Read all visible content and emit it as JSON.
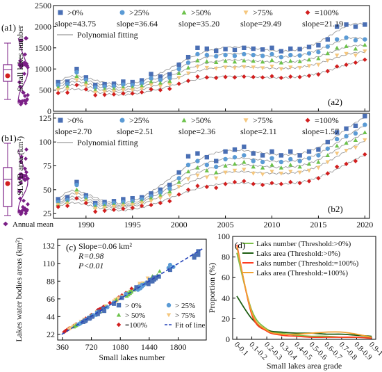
{
  "colors": {
    "gt0": "#4a6fb4",
    "gt25": "#5b9bd5",
    "gt50": "#6cc24a",
    "gt75": "#f5c77e",
    "eq100": "#d21f1f",
    "purple": "#7b1f86",
    "fit": "#9a9a9a",
    "darkgreen": "#1e5e12",
    "lightgreen": "#7cc04a",
    "red": "#ff3b1f",
    "orange": "#f0a030"
  },
  "panel_labels": {
    "a1": "(a1)",
    "b1": "(b1)",
    "a2": "(a2)",
    "b2": "(b2)",
    "c": "(c)",
    "d": "(d)"
  },
  "annual_mean_label": "Annual mean",
  "chart_data": [
    {
      "id": "a2",
      "type": "scatter",
      "ylabel": "Small lakes number",
      "ylim": [
        0,
        2500
      ],
      "yticks": [
        0,
        500,
        1000,
        1500,
        2000,
        2500
      ],
      "xlim": [
        1986.5,
        2020.5
      ],
      "fit_label": "Polynomial fitting",
      "legend": [
        {
          "key": "gt0",
          "label": ">0%",
          "slope": "slope=43.75",
          "marker": "square"
        },
        {
          "key": "gt25",
          "label": ">25%",
          "slope": "slope=36.64",
          "marker": "circle"
        },
        {
          "key": "gt50",
          "label": ">50%",
          "slope": "slope=35.20",
          "marker": "triangle"
        },
        {
          "key": "gt75",
          "label": ">75%",
          "slope": "slope=29.49",
          "marker": "tridown"
        },
        {
          "key": "eq100",
          "label": "=100%",
          "slope": "slope=21.19",
          "marker": "diamond"
        }
      ],
      "years": [
        1987,
        1988,
        1989,
        1990,
        1991,
        1992,
        1993,
        1994,
        1995,
        1996,
        1997,
        1998,
        1999,
        2000,
        2001,
        2002,
        2003,
        2004,
        2005,
        2006,
        2007,
        2008,
        2009,
        2010,
        2011,
        2012,
        2013,
        2014,
        2015,
        2016,
        2017,
        2018,
        2019,
        2020
      ],
      "series": [
        {
          "key": "gt0",
          "values": [
            690,
            700,
            1000,
            800,
            620,
            640,
            650,
            700,
            690,
            730,
            880,
            820,
            870,
            1100,
            1280,
            1500,
            1480,
            1430,
            1470,
            1450,
            1500,
            1480,
            1460,
            1500,
            1420,
            1480,
            1470,
            1520,
            1560,
            1700,
            2000,
            2050,
            2000,
            2050
          ]
        },
        {
          "key": "gt25",
          "values": [
            620,
            640,
            920,
            740,
            560,
            580,
            590,
            630,
            620,
            660,
            780,
            740,
            790,
            1000,
            1150,
            1350,
            1330,
            1300,
            1330,
            1310,
            1350,
            1330,
            1310,
            1350,
            1280,
            1330,
            1320,
            1370,
            1400,
            1530,
            1700,
            1740,
            1680,
            1700
          ]
        },
        {
          "key": "gt50",
          "values": [
            560,
            580,
            830,
            680,
            500,
            520,
            530,
            560,
            560,
            600,
            700,
            670,
            710,
            900,
            1030,
            1200,
            1180,
            1160,
            1190,
            1170,
            1200,
            1190,
            1170,
            1210,
            1150,
            1190,
            1180,
            1220,
            1250,
            1370,
            1500,
            1540,
            1480,
            1570
          ]
        },
        {
          "key": "gt75",
          "values": [
            500,
            520,
            740,
            610,
            440,
            460,
            470,
            500,
            500,
            530,
            620,
            590,
            630,
            790,
            900,
            1050,
            1030,
            1010,
            1040,
            1020,
            1050,
            1040,
            1020,
            1060,
            1000,
            1040,
            1030,
            1070,
            1100,
            1200,
            1320,
            1360,
            1320,
            1420
          ]
        },
        {
          "key": "eq100",
          "values": [
            430,
            440,
            620,
            520,
            380,
            390,
            400,
            420,
            420,
            450,
            520,
            500,
            530,
            650,
            720,
            820,
            800,
            790,
            810,
            800,
            820,
            810,
            800,
            830,
            790,
            820,
            810,
            840,
            870,
            950,
            1060,
            1100,
            1150,
            1220
          ]
        }
      ]
    },
    {
      "id": "b2",
      "type": "scatter",
      "ylabel": "SLWB area (km²)",
      "ylim": [
        20,
        130
      ],
      "yticks": [
        25,
        50,
        75,
        100,
        125
      ],
      "xlim": [
        1986.5,
        2020.5
      ],
      "xticks": [
        1990,
        1995,
        2000,
        2005,
        2010,
        2015,
        2020
      ],
      "fit_label": "Polynomial fitting",
      "legend": [
        {
          "key": "gt0",
          "label": ">0%",
          "slope": "slope=2.70",
          "marker": "square"
        },
        {
          "key": "gt25",
          "label": ">25%",
          "slope": "slope=2.51",
          "marker": "circle"
        },
        {
          "key": "gt50",
          "label": ">50%",
          "slope": "slope=2.36",
          "marker": "triangle"
        },
        {
          "key": "gt75",
          "label": ">75%",
          "slope": "slope=2.11",
          "marker": "tridown"
        },
        {
          "key": "eq100",
          "label": "=100%",
          "slope": "slope=1.57",
          "marker": "diamond"
        }
      ],
      "years": [
        1987,
        1988,
        1989,
        1990,
        1991,
        1992,
        1993,
        1994,
        1995,
        1996,
        1997,
        1998,
        1999,
        2000,
        2001,
        2002,
        2003,
        2004,
        2005,
        2006,
        2007,
        2008,
        2009,
        2010,
        2011,
        2012,
        2013,
        2014,
        2015,
        2016,
        2017,
        2018,
        2019,
        2020
      ],
      "series": [
        {
          "key": "gt0",
          "values": [
            40,
            42,
            58,
            44,
            36,
            37,
            38,
            40,
            41,
            42,
            46,
            50,
            55,
            68,
            85,
            88,
            84,
            80,
            90,
            92,
            95,
            88,
            86,
            90,
            86,
            90,
            86,
            90,
            92,
            100,
            110,
            114,
            117,
            127
          ]
        },
        {
          "key": "gt25",
          "values": [
            37,
            39,
            55,
            42,
            34,
            35,
            36,
            37,
            38,
            40,
            43,
            47,
            51,
            62,
            76,
            80,
            76,
            74,
            82,
            84,
            86,
            80,
            79,
            83,
            79,
            82,
            80,
            83,
            86,
            93,
            103,
            106,
            109,
            118
          ]
        },
        {
          "key": "gt50",
          "values": [
            35,
            37,
            50,
            40,
            32,
            33,
            34,
            35,
            36,
            38,
            41,
            44,
            48,
            58,
            69,
            73,
            70,
            68,
            75,
            77,
            79,
            74,
            73,
            76,
            73,
            76,
            74,
            77,
            79,
            86,
            96,
            99,
            102,
            110
          ]
        },
        {
          "key": "gt75",
          "values": [
            34,
            35,
            46,
            38,
            30,
            31,
            32,
            33,
            34,
            36,
            38,
            41,
            44,
            53,
            61,
            65,
            63,
            62,
            68,
            70,
            71,
            67,
            66,
            69,
            67,
            69,
            68,
            70,
            73,
            79,
            88,
            91,
            94,
            102
          ]
        },
        {
          "key": "eq100",
          "values": [
            32,
            33,
            41,
            36,
            27,
            28,
            29,
            30,
            31,
            33,
            34,
            36,
            38,
            45,
            50,
            54,
            53,
            52,
            56,
            58,
            59,
            56,
            55,
            57,
            56,
            58,
            57,
            59,
            62,
            67,
            74,
            77,
            80,
            87
          ]
        }
      ]
    },
    {
      "id": "c",
      "type": "scatter",
      "xlabel": "Small lakes number",
      "ylabel": "Lakes water bodies areas (km²)",
      "xlim": [
        300,
        2150
      ],
      "ylim": [
        15,
        140
      ],
      "xticks": [
        360,
        720,
        1080,
        1440,
        1800
      ],
      "yticks": [
        22,
        44,
        66,
        88,
        110,
        132
      ],
      "annotation": [
        "Slope=0.06 km²",
        "R=0.98",
        "P<0.01"
      ],
      "legend": [
        {
          "key": "gt0",
          "label": "> 0%"
        },
        {
          "key": "gt25",
          "label": "> 25%"
        },
        {
          "key": "gt50",
          "label": "> 50%"
        },
        {
          "key": "gt75",
          "label": "> 75%"
        },
        {
          "key": "eq100",
          "label": "=100%"
        },
        {
          "key": "fit",
          "label": "Fit of line"
        }
      ],
      "fit_line": [
        [
          350,
          22
        ],
        [
          2100,
          128
        ]
      ]
    },
    {
      "id": "d",
      "type": "line",
      "xlabel": "Small lakes area grade",
      "ylabel": "Proportion (%)",
      "ylim": [
        0,
        100
      ],
      "yticks": [
        0,
        20,
        40,
        60,
        80,
        100
      ],
      "categories": [
        "0-0.1",
        "0.1-0.2",
        "0.2-0.3",
        "0.3-0.4",
        "0.4-0.5",
        "0.5-0.6",
        "0.6-0.7",
        "0.7-0.8",
        "0.8-0.9",
        "0.9-1"
      ],
      "legend": [
        {
          "key": "lightgreen",
          "label": "Laks number (Threshold:>0%)"
        },
        {
          "key": "darkgreen",
          "label": "Laks area (Threshold:>0%)"
        },
        {
          "key": "red",
          "label": "Laks number (Threshold:=100%)"
        },
        {
          "key": "orange",
          "label": "Laks area (Threshold:=100%)"
        }
      ],
      "series": [
        {
          "key": "lightgreen",
          "values": [
            84,
            28,
            10,
            6,
            4,
            3,
            3,
            2,
            2,
            2
          ]
        },
        {
          "key": "darkgreen",
          "values": [
            42,
            20,
            9,
            7,
            6,
            6,
            5,
            5,
            4,
            3
          ]
        },
        {
          "key": "red",
          "values": [
            92,
            24,
            8,
            4,
            3,
            2,
            2,
            2,
            2,
            1
          ]
        },
        {
          "key": "orange",
          "values": [
            90,
            26,
            9,
            5,
            5,
            6,
            7,
            7,
            5,
            2
          ]
        }
      ]
    }
  ]
}
